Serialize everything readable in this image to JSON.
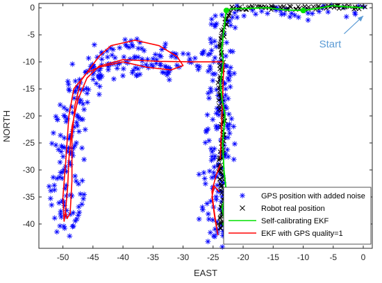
{
  "chart_data": {
    "type": "scatter",
    "xlabel": "EAST",
    "ylabel": "NORTH",
    "xlim": [
      -54,
      1.5
    ],
    "ylim": [
      -44.5,
      0.8
    ],
    "xticks": [
      -50,
      -45,
      -40,
      -35,
      -30,
      -25,
      -20,
      -15,
      -10,
      -5,
      0
    ],
    "yticks": [
      0,
      -5,
      -10,
      -15,
      -20,
      -25,
      -30,
      -35,
      -40
    ],
    "grid": false,
    "legend_position": "bottom-right",
    "annotation": {
      "text": "Start",
      "x": -5.5,
      "y": -6.6,
      "arrow_to": [
        0,
        -1.5
      ]
    },
    "series": [
      {
        "name": "GPS position with added noise",
        "marker": "asterisk",
        "color": "#0000ff",
        "path": [
          [
            0,
            0
          ],
          [
            -5,
            0.3
          ],
          [
            -10,
            -0.5
          ],
          [
            -15,
            0
          ],
          [
            -20,
            0
          ],
          [
            -22.5,
            0
          ],
          [
            -23,
            -3
          ],
          [
            -23.5,
            -6
          ],
          [
            -23.8,
            -10
          ],
          [
            -24.3,
            -16
          ],
          [
            -23.2,
            -20
          ],
          [
            -23.4,
            -25
          ],
          [
            -23.8,
            -30
          ],
          [
            -23,
            -36
          ],
          [
            -24.2,
            -40
          ],
          [
            -24.8,
            -43
          ],
          [
            -25.2,
            -38
          ],
          [
            -25.6,
            -33
          ],
          [
            -25.3,
            -30
          ],
          [
            -24.8,
            -28
          ],
          [
            -23.5,
            -10
          ],
          [
            -29,
            -10
          ],
          [
            -35,
            -9.8
          ],
          [
            -41,
            -9.6
          ],
          [
            -45,
            -12
          ],
          [
            -47.5,
            -17
          ],
          [
            -48.5,
            -23
          ],
          [
            -48.5,
            -30
          ],
          [
            -48.5,
            -38
          ],
          [
            -49.5,
            -41
          ],
          [
            -50.5,
            -34
          ],
          [
            -50,
            -26
          ],
          [
            -49,
            -19
          ],
          [
            -47,
            -13
          ],
          [
            -44,
            -9
          ],
          [
            -40,
            -7
          ],
          [
            -36,
            -7.5
          ],
          [
            -32,
            -9
          ],
          [
            -30.5,
            -10.8
          ],
          [
            -32,
            -11.5
          ],
          [
            -36,
            -11
          ],
          [
            -40,
            -10.5
          ],
          [
            -44,
            -11.5
          ],
          [
            -46,
            -12
          ]
        ],
        "jitter": 2.1
      },
      {
        "name": "Robot real position",
        "marker": "x",
        "color": "#000000",
        "path": [
          [
            0,
            0
          ],
          [
            -5,
            0.2
          ],
          [
            -10,
            -0.1
          ],
          [
            -15,
            0
          ],
          [
            -20,
            0
          ],
          [
            -22.5,
            -0.2
          ],
          [
            -23,
            -3
          ],
          [
            -23.6,
            -6
          ],
          [
            -23.6,
            -10
          ],
          [
            -24,
            -16
          ],
          [
            -23.3,
            -20
          ],
          [
            -23.5,
            -25
          ],
          [
            -23.8,
            -30
          ],
          [
            -23.2,
            -36
          ],
          [
            -23.8,
            -40
          ],
          [
            -24,
            -41
          ]
        ],
        "jitter": 0.35
      },
      {
        "name": "Self-calibrating EKF",
        "marker": "none",
        "color": "#00e000",
        "path": [
          [
            0,
            0
          ],
          [
            -3,
            0.2
          ],
          [
            -5,
            0.4
          ],
          [
            -7,
            0
          ],
          [
            -10,
            -0.5
          ],
          [
            -13,
            -0.4
          ],
          [
            -16,
            0
          ],
          [
            -19,
            -0.1
          ],
          [
            -22,
            -0.2
          ],
          [
            -22.8,
            -0.5
          ],
          [
            -23.2,
            -4
          ],
          [
            -23.6,
            -8
          ],
          [
            -23.3,
            -10
          ],
          [
            -23.8,
            -14
          ],
          [
            -23.5,
            -17
          ],
          [
            -23,
            -20
          ],
          [
            -23.4,
            -25
          ],
          [
            -23.2,
            -30
          ],
          [
            -22.8,
            -34
          ],
          [
            -23.5,
            -37
          ],
          [
            -23,
            -40
          ]
        ],
        "markers": [
          [
            -22.8,
            -0.5
          ],
          [
            -10,
            -0.5
          ],
          [
            -23,
            -40
          ]
        ]
      },
      {
        "name": "EKF with GPS quality=1",
        "marker": "none",
        "color": "#ff0000",
        "path": [
          [
            -23.8,
            -28
          ],
          [
            -23.2,
            -10
          ],
          [
            -28,
            -10
          ],
          [
            -34,
            -9.9
          ],
          [
            -40,
            -9.6
          ],
          [
            -44,
            -10.8
          ],
          [
            -46,
            -13
          ],
          [
            -47.5,
            -17
          ],
          [
            -48.5,
            -22
          ],
          [
            -49,
            -28
          ],
          [
            -49.2,
            -33
          ],
          [
            -49.6,
            -38
          ],
          [
            -49.8,
            -39.5
          ],
          [
            -50,
            -35
          ],
          [
            -49.5,
            -28
          ],
          [
            -49,
            -20
          ],
          [
            -48.2,
            -15
          ],
          [
            -46,
            -12
          ],
          [
            -44,
            -9
          ],
          [
            -42,
            -7
          ],
          [
            -38,
            -6
          ],
          [
            -34,
            -7
          ],
          [
            -31,
            -9
          ],
          [
            -30,
            -10.7
          ],
          [
            -32,
            -11.5
          ],
          [
            -36,
            -11
          ],
          [
            -40,
            -10
          ],
          [
            -44,
            -11
          ],
          [
            -46,
            -12
          ],
          [
            -47,
            -13.5
          ],
          [
            -48,
            -18
          ],
          [
            -48.5,
            -24
          ],
          [
            -48.5,
            -32
          ],
          [
            -48.8,
            -38
          ],
          [
            -49.3,
            -39
          ],
          [
            -49.5,
            -38
          ]
        ],
        "subpath": [
          [
            -23.8,
            -29
          ],
          [
            -24.5,
            -31
          ],
          [
            -25.2,
            -34
          ],
          [
            -24.9,
            -37
          ],
          [
            -24.5,
            -40
          ],
          [
            -24.2,
            -42
          ],
          [
            -24.7,
            -39
          ],
          [
            -25.2,
            -35
          ],
          [
            -24.8,
            -33
          ],
          [
            -24,
            -34
          ]
        ]
      }
    ]
  }
}
